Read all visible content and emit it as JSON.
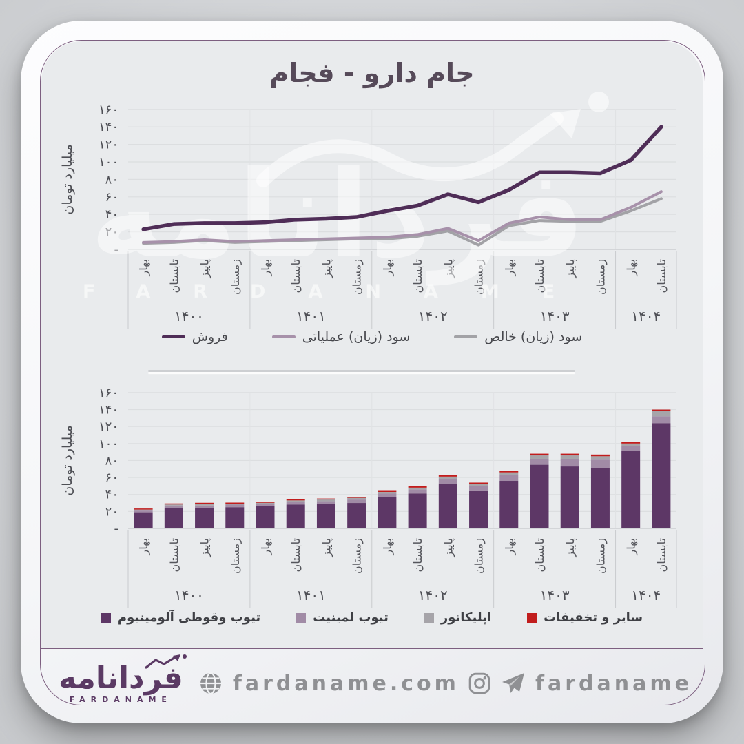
{
  "title": "جام دارو - فجام",
  "y_axis": {
    "label": "میلیارد تومان",
    "ticks": [
      "-",
      "۲۰",
      "۴۰",
      "۶۰",
      "۸۰",
      "۱۰۰",
      "۱۲۰",
      "۱۴۰",
      "۱۶۰"
    ],
    "max": 160,
    "step": 20
  },
  "x_axis": {
    "quarters_cycle": [
      "بهار",
      "تابستان",
      "پاییز",
      "زمستان"
    ],
    "year_groups": [
      {
        "label": "۱۴۰۰",
        "count": 4
      },
      {
        "label": "۱۴۰۱",
        "count": 4
      },
      {
        "label": "۱۴۰۲",
        "count": 4
      },
      {
        "label": "۱۴۰۳",
        "count": 4
      },
      {
        "label": "۱۴۰۴",
        "count": 2
      }
    ]
  },
  "chart_data": [
    {
      "type": "line",
      "ylabel": "میلیارد تومان",
      "ylim": [
        0,
        160
      ],
      "grid": true,
      "legend_position": "bottom",
      "series": [
        {
          "name": "فروش",
          "color": "#4f2d57",
          "width": 5.5,
          "values": [
            23,
            29,
            30,
            30,
            31,
            34,
            35,
            37,
            44,
            50,
            63,
            54,
            68,
            88,
            88,
            87,
            102,
            140
          ]
        },
        {
          "name": "سود (زیان) عملیاتی",
          "color": "#a791aa",
          "width": 4,
          "values": [
            8,
            9,
            11,
            9,
            10,
            11,
            12,
            13,
            14,
            17,
            24,
            10,
            30,
            37,
            34,
            34,
            48,
            66
          ]
        },
        {
          "name": "سود (زیان) خالص",
          "color": "#a2a2a6",
          "width": 4,
          "values": [
            7,
            8,
            10,
            8,
            9,
            10,
            11,
            12,
            12,
            15,
            21,
            5,
            27,
            33,
            32,
            32,
            44,
            58
          ]
        }
      ]
    },
    {
      "type": "stacked-bar",
      "ylabel": "میلیارد تومان",
      "ylim": [
        0,
        160
      ],
      "grid": true,
      "legend_position": "bottom",
      "series": [
        {
          "name": "تیوب وقوطی آلومینیوم",
          "color": "#5d3766",
          "values": [
            19,
            24,
            24,
            25,
            26,
            28,
            29,
            30,
            37,
            41,
            52,
            44,
            56,
            75,
            73,
            71,
            91,
            124
          ]
        },
        {
          "name": "تیوب لمینیت",
          "color": "#a18ba6",
          "values": [
            2,
            3,
            3,
            3,
            3,
            3,
            3,
            4,
            4,
            5,
            6,
            6,
            7,
            7,
            9,
            10,
            6,
            8
          ]
        },
        {
          "name": "اپلیکاتور",
          "color": "#a6a4a9",
          "values": [
            1,
            1,
            2,
            1,
            1,
            2,
            2,
            2,
            2,
            2,
            3,
            2,
            3,
            4,
            4,
            4,
            3,
            6
          ]
        },
        {
          "name": "سایر و تخفیفات",
          "color": "#c11d1d",
          "values": [
            1,
            1,
            1,
            1,
            1,
            1,
            1,
            1,
            1,
            2,
            2,
            2,
            2,
            2,
            2,
            2,
            2,
            2
          ]
        }
      ]
    }
  ],
  "watermark": {
    "fa": "فردانامه",
    "en_spaced": "FARDANAME"
  },
  "footer": {
    "logo_fa": "فردانامه",
    "logo_en": "FARDANAME",
    "website": "fardaname.com",
    "social_handle": "fardaname"
  },
  "colors": {
    "accent": "#5b3a64",
    "panel_bg": "#e9ebed",
    "grid": "#dcdee0",
    "axis": "#c6c8cb",
    "year_separator": "#c9cbce",
    "tick_text": "#4e4f55",
    "footer_text": "#8f9093",
    "border": "#7d5f80",
    "red": "#c11d1d"
  }
}
